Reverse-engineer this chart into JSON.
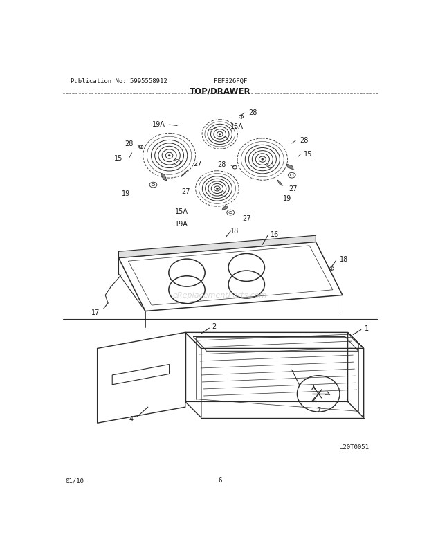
{
  "title": "TOP/DRAWER",
  "pub_no": "Publication No: 5995558912",
  "model": "FEF326FQF",
  "date": "01/10",
  "page": "6",
  "diagram_id": "L20T0051",
  "watermark": "eReplacementParts.com",
  "bg_color": "#ffffff",
  "line_color": "#2a2a2a",
  "text_color": "#1a1a1a",
  "title_fontsize": 8.5,
  "label_fontsize": 7,
  "header_fontsize": 6.5
}
